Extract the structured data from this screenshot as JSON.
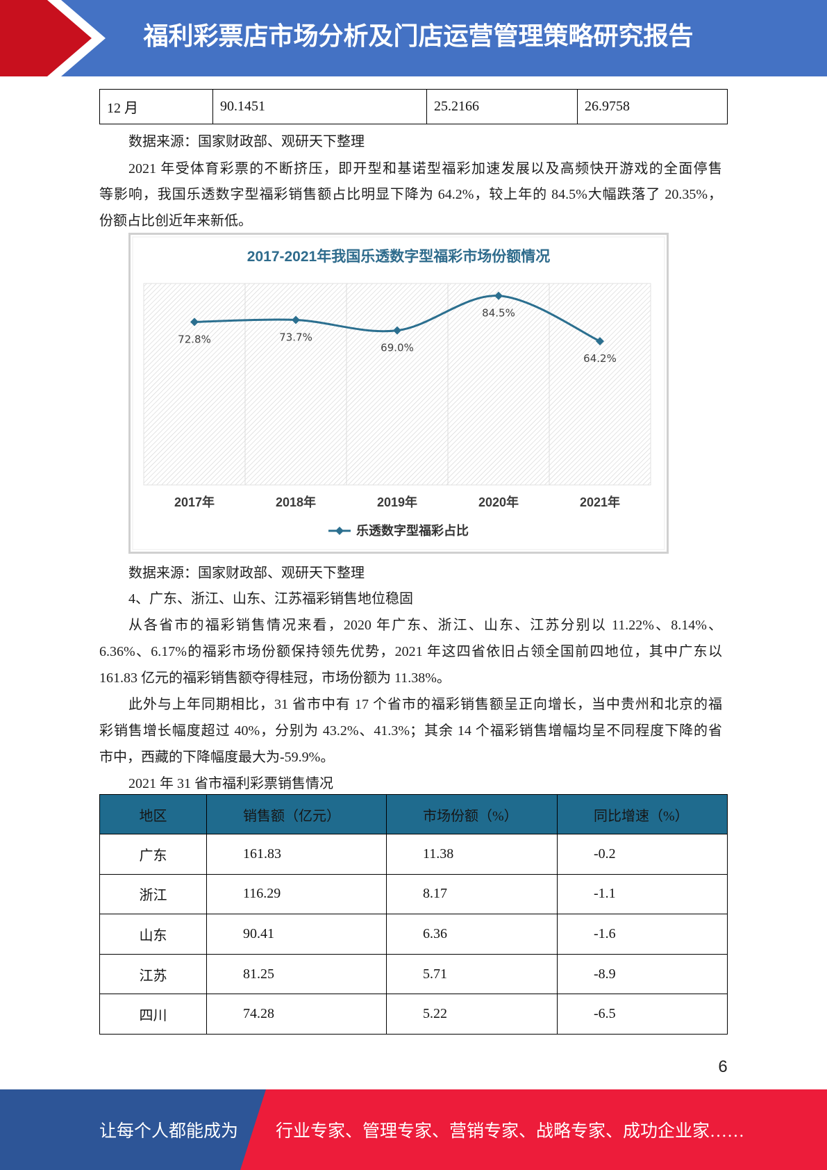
{
  "header": {
    "title": "福利彩票店市场分析及门店运营管理策略研究报告"
  },
  "colors": {
    "header_blue": "#4472c4",
    "header_red": "#c8101e",
    "footer_blue": "#2d5597",
    "footer_red": "#ed1c3a",
    "table_header": "#1f6b8e",
    "chart_line": "#2b6f8f",
    "chart_title": "#2e6b8c"
  },
  "top_table": {
    "row": [
      "12 月",
      "90.1451",
      "25.2166",
      "26.9758"
    ]
  },
  "source_1": "数据来源：国家财政部、观研天下整理",
  "paragraph_1": {
    "lines": [
      "2021 年受体育彩票的不断挤压，即开型和基诺型福彩加速发展以及高频快开游戏的全面停售",
      "等影响，我国乐透数字型福彩销售额占比明显下降为 64.2%，较上年的 84.5%大幅跌落了 20.35%，",
      "份额占比创近年来新低。"
    ]
  },
  "chart_data": {
    "type": "line",
    "title": "2017-2021年我国乐透数字型福彩市场份额情况",
    "categories": [
      "2017年",
      "2018年",
      "2019年",
      "2020年",
      "2021年"
    ],
    "series": [
      {
        "name": "乐透数字型福彩占比",
        "values": [
          72.8,
          73.7,
          69.0,
          84.5,
          64.2
        ],
        "data_labels": [
          "72.8%",
          "73.7%",
          "69.0%",
          "84.5%",
          "64.2%"
        ]
      }
    ],
    "xlabel": "",
    "ylabel": "",
    "ylim": [
      0,
      90
    ],
    "grid": true,
    "legend": "bottom"
  },
  "source_2": "数据来源：国家财政部、观研天下整理",
  "section_heading": "4、广东、浙江、山东、江苏福彩销售地位稳固",
  "paragraph_2": {
    "lines": [
      "从各省市的福彩销售情况来看，2020 年广东、浙江、山东、江苏分别以 11.22%、8.14%、",
      "6.36%、6.17%的福彩市场份额保持领先优势，2021 年这四省依旧占领全国前四地位，其中广东以",
      "161.83 亿元的福彩销售额夺得桂冠，市场份额为 11.38%。"
    ]
  },
  "paragraph_3": {
    "lines": [
      "此外与上年同期相比，31 省市中有 17 个省市的福彩销售额呈正向增长，当中贵州和北京的福",
      "彩销售增长幅度超过 40%，分别为 43.2%、41.3%；其余 14 个福彩销售增幅均呈不同程度下降的省",
      "市中，西藏的下降幅度最大为-59.9%。"
    ]
  },
  "table_caption": "2021 年 31 省市福利彩票销售情况",
  "sales_table": {
    "headers": [
      "地区",
      "销售额（亿元）",
      "市场份额（%）",
      "同比增速（%）"
    ],
    "rows": [
      [
        "广东",
        "161.83",
        "11.38",
        "-0.2"
      ],
      [
        "浙江",
        "116.29",
        "8.17",
        "-1.1"
      ],
      [
        "山东",
        "90.41",
        "6.36",
        "-1.6"
      ],
      [
        "江苏",
        "81.25",
        "5.71",
        "-8.9"
      ],
      [
        "四川",
        "74.28",
        "5.22",
        "-6.5"
      ]
    ]
  },
  "page_number": "6",
  "footer": {
    "left": "让每个人都能成为",
    "right": "行业专家、管理专家、营销专家、战略专家、成功企业家……"
  }
}
